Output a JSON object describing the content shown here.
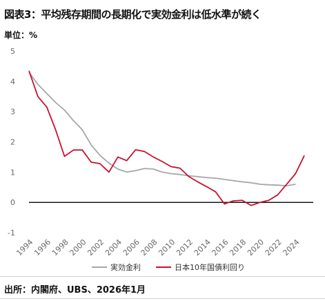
{
  "header": {
    "title": "図表3：平均残存期間の長期化で実効金利は低水準が続く",
    "unit": "単位：%"
  },
  "footer": {
    "source": "出所：内閣府、UBS、2026年1月"
  },
  "colors": {
    "effective_rate": "#a6a6a6",
    "jgb_10y": "#c8102e",
    "zero_line": "#000000"
  },
  "chart_data": {
    "type": "line",
    "title": "図表3：平均残存期間の長期化で実効金利は低水準が続く",
    "ylabel": "単位：%",
    "xlim": [
      1994,
      2026
    ],
    "ylim": [
      -1,
      5
    ],
    "yticks": [
      "5",
      "4",
      "3",
      "2",
      "1",
      "0",
      "-1"
    ],
    "xticks": [
      "1994",
      "1996",
      "1998",
      "2000",
      "2002",
      "2004",
      "2006",
      "2008",
      "2010",
      "2012",
      "2014",
      "2016",
      "2018",
      "2020",
      "2022",
      "2024"
    ],
    "legend_position": "bottom",
    "series": [
      {
        "name": "実効金利",
        "color": "#a6a6a6",
        "x": [
          1994,
          1995,
          1996,
          1997,
          1998,
          1999,
          2000,
          2001,
          2002,
          2003,
          2004,
          2005,
          2006,
          2007,
          2008,
          2009,
          2010,
          2011,
          2012,
          2013,
          2014,
          2015,
          2016,
          2017,
          2018,
          2019,
          2020,
          2021,
          2022,
          2023,
          2024
        ],
        "y": [
          4.3,
          3.9,
          3.6,
          3.3,
          3.05,
          2.7,
          2.4,
          1.9,
          1.55,
          1.3,
          1.1,
          1.0,
          1.05,
          1.12,
          1.1,
          1.0,
          0.95,
          0.92,
          0.88,
          0.85,
          0.82,
          0.8,
          0.76,
          0.72,
          0.68,
          0.65,
          0.6,
          0.58,
          0.57,
          0.55,
          0.6
        ]
      },
      {
        "name": "日本10年国債利回り",
        "color": "#c8102e",
        "x": [
          1994,
          1995,
          1996,
          1997,
          1998,
          1999,
          2000,
          2001,
          2002,
          2003,
          2004,
          2005,
          2006,
          2007,
          2008,
          2009,
          2010,
          2011,
          2012,
          2013,
          2014,
          2015,
          2016,
          2017,
          2018,
          2019,
          2020,
          2021,
          2022,
          2023,
          2024,
          2025
        ],
        "y": [
          4.35,
          3.5,
          3.15,
          2.4,
          1.52,
          1.73,
          1.73,
          1.33,
          1.28,
          1.0,
          1.5,
          1.38,
          1.74,
          1.68,
          1.5,
          1.35,
          1.18,
          1.13,
          0.85,
          0.68,
          0.52,
          0.35,
          -0.05,
          0.05,
          0.07,
          -0.1,
          0.0,
          0.07,
          0.25,
          0.6,
          0.95,
          1.55
        ]
      }
    ]
  }
}
